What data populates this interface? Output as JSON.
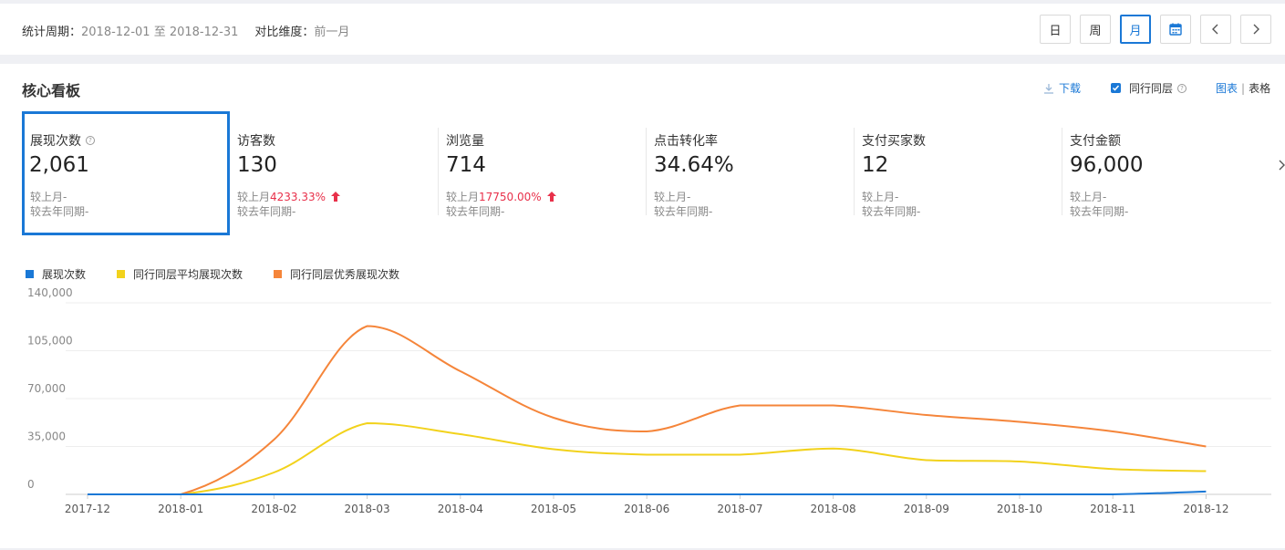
{
  "header": {
    "period_label": "统计周期：",
    "period_value": "2018-12-01 至 2018-12-31",
    "compare_label": "对比维度：",
    "compare_value": "前一月",
    "buttons": {
      "day": "日",
      "week": "周",
      "month": "月"
    }
  },
  "panel": {
    "title": "核心看板",
    "download": "下载",
    "peer_checkbox": "同行同层",
    "view_chart": "图表",
    "view_divider": "|",
    "view_table": "表格"
  },
  "metrics": [
    {
      "label": "展现次数",
      "value": "2,061",
      "mom_label": "较上月",
      "mom_value": "-",
      "yoy_label": "较去年同期",
      "yoy_value": "-"
    },
    {
      "label": "访客数",
      "value": "130",
      "mom_label": "较上月",
      "mom_value": "4233.33%",
      "yoy_label": "较去年同期",
      "yoy_value": "-"
    },
    {
      "label": "浏览量",
      "value": "714",
      "mom_label": "较上月",
      "mom_value": "17750.00%",
      "yoy_label": "较去年同期",
      "yoy_value": "-"
    },
    {
      "label": "点击转化率",
      "value": "34.64%",
      "mom_label": "较上月",
      "mom_value": "-",
      "yoy_label": "较去年同期",
      "yoy_value": "-"
    },
    {
      "label": "支付买家数",
      "value": "12",
      "mom_label": "较上月",
      "mom_value": "-",
      "yoy_label": "较去年同期",
      "yoy_value": "-"
    },
    {
      "label": "支付金额",
      "value": "96,000",
      "mom_label": "较上月",
      "mom_value": "-",
      "yoy_label": "较去年同期",
      "yoy_value": "-"
    }
  ],
  "colors": {
    "accent": "#1a78d6",
    "up": "#e8304a"
  },
  "chart_data": {
    "type": "line",
    "x": [
      "2017-12",
      "2018-01",
      "2018-02",
      "2018-03",
      "2018-04",
      "2018-05",
      "2018-06",
      "2018-07",
      "2018-08",
      "2018-09",
      "2018-10",
      "2018-11",
      "2018-12"
    ],
    "ylim": [
      0,
      140000
    ],
    "yticks": [
      "0",
      "35,000",
      "70,000",
      "105,000",
      "140,000"
    ],
    "grid": true,
    "legend_position": "top-left",
    "series": [
      {
        "name": "展现次数",
        "color": "#1a78d6",
        "values": [
          0,
          0,
          0,
          0,
          0,
          0,
          0,
          0,
          0,
          0,
          0,
          0,
          2061
        ]
      },
      {
        "name": "同行同层平均展现次数",
        "color": "#f2d21c",
        "values": [
          0,
          0,
          16000,
          52000,
          44000,
          33000,
          29000,
          29000,
          33500,
          25000,
          24000,
          18500,
          17000
        ]
      },
      {
        "name": "同行同层优秀展现次数",
        "color": "#f5853a",
        "values": [
          0,
          0,
          40000,
          123000,
          90000,
          56000,
          46000,
          65000,
          65000,
          58000,
          53000,
          46000,
          35000
        ]
      }
    ]
  }
}
